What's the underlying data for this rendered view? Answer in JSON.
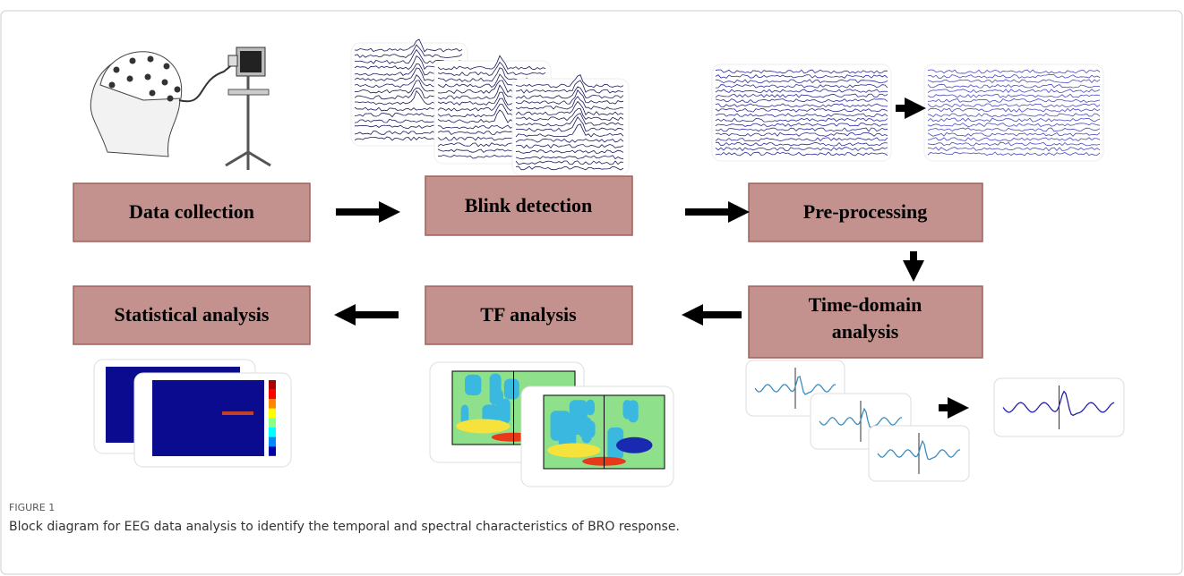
{
  "nodes": [
    {
      "label": [
        "Data collection"
      ]
    },
    {
      "label": [
        "Blink detection"
      ]
    },
    {
      "label": [
        "Pre-processing"
      ]
    },
    {
      "label": [
        "Time-domain",
        "analysis"
      ]
    },
    {
      "label": [
        "TF analysis"
      ]
    },
    {
      "label": [
        "Statistical analysis"
      ]
    }
  ],
  "figure": {
    "number": "FIGURE 1",
    "caption": "Block diagram for EEG data analysis to identify the temporal and spectral characteristics of BRO response."
  }
}
